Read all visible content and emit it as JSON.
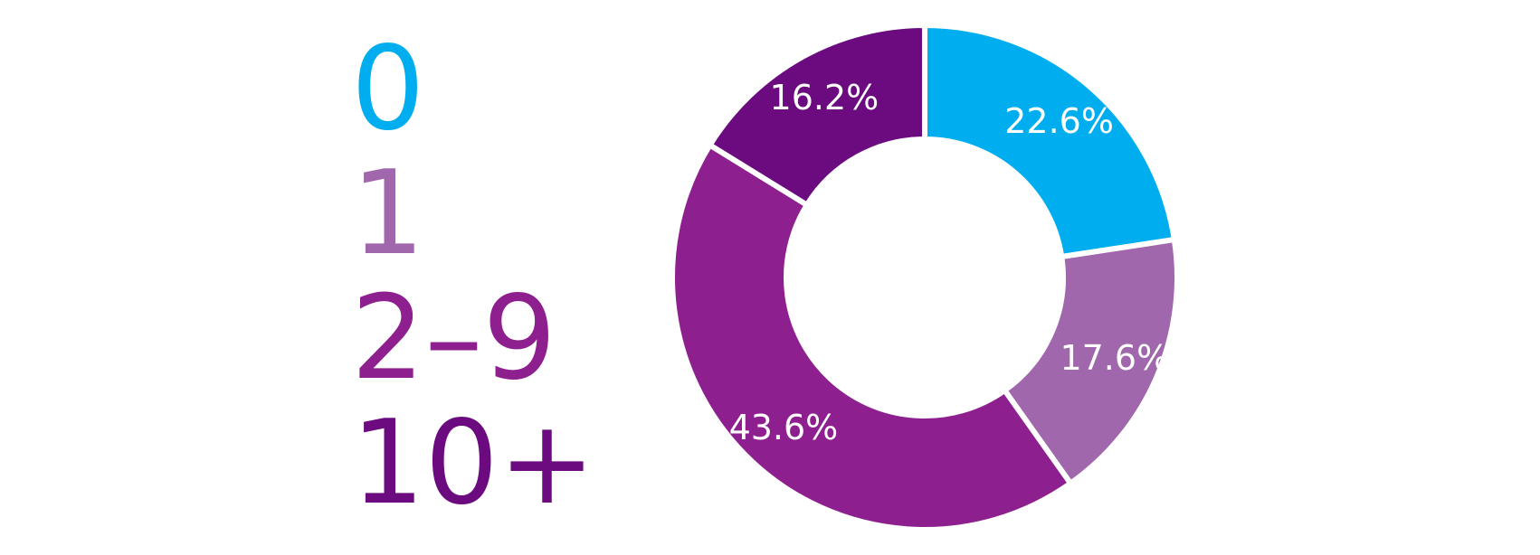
{
  "chart_data": {
    "type": "pie",
    "variant": "donut",
    "legend_position": "left",
    "slices": [
      {
        "label": "0",
        "value": 22.6,
        "value_label": "22.6%",
        "color": "#00AEEF"
      },
      {
        "label": "1",
        "value": 17.6,
        "value_label": "17.6%",
        "color": "#A067AC"
      },
      {
        "label": "2–9",
        "value": 43.6,
        "value_label": "43.6%",
        "color": "#8E1F8F"
      },
      {
        "label": "10+",
        "value": 16.2,
        "value_label": "16.2%",
        "color": "#6C0B7F"
      }
    ]
  }
}
